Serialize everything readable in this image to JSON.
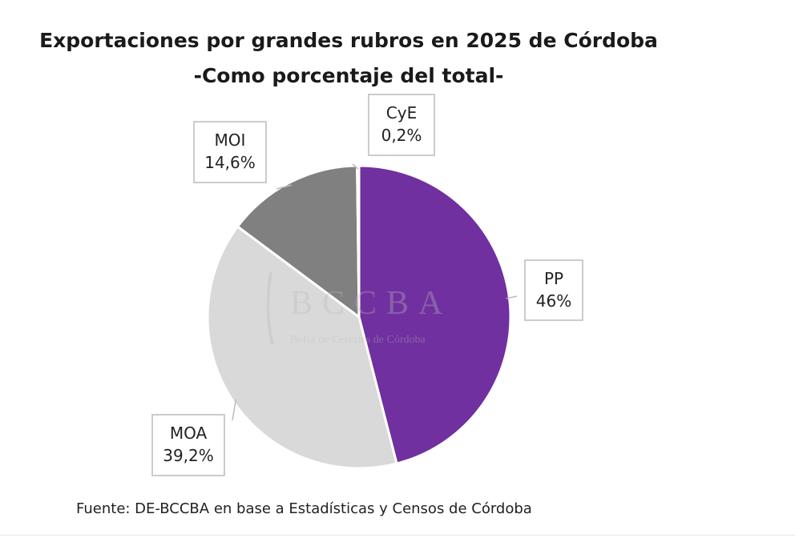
{
  "chart_data": {
    "type": "pie",
    "title": "Exportaciones por grandes rubros  en 2025 de Córdoba",
    "subtitle": "-Como porcentaje del total-",
    "categories": [
      "PP",
      "MOA",
      "MOI",
      "CyE"
    ],
    "values": [
      46,
      39.2,
      14.6,
      0.2
    ],
    "data_labels": [
      "46%",
      "39,2%",
      "14,6%",
      "0,2%"
    ],
    "colors": [
      "#7030a0",
      "#d9d9d9",
      "#808080",
      "#7b2770"
    ],
    "start_angle": "top, clockwise",
    "source": "Fuente: DE-BCCBA en base a Estadísticas y Censos de Córdoba"
  },
  "watermark": {
    "logo": "BCCBA",
    "subtitle": "Bolsa de Cereales de Córdoba"
  }
}
